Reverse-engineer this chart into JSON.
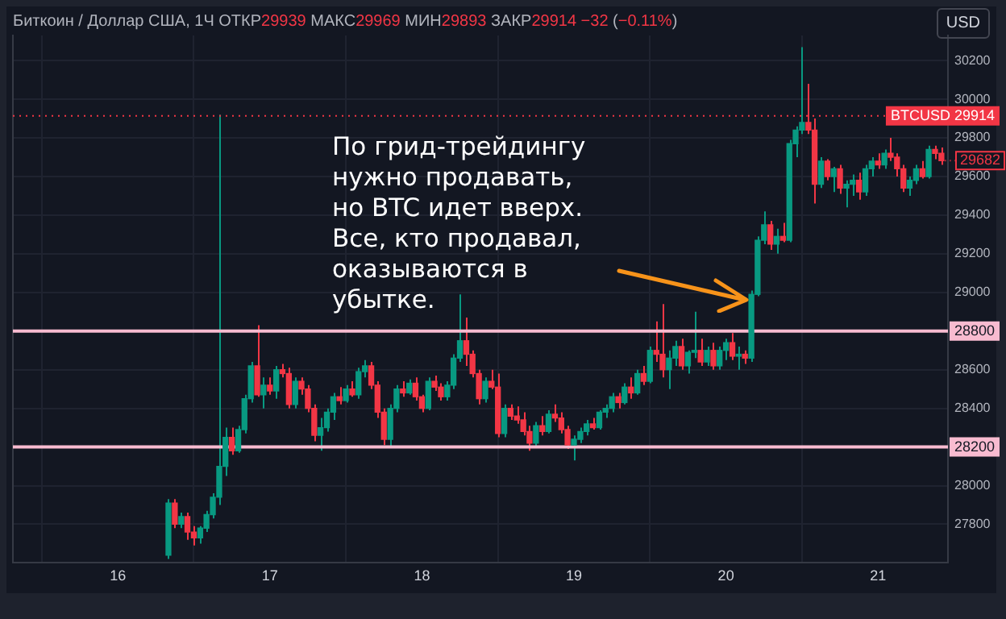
{
  "chart_data": {
    "type": "candlestick",
    "title": "Биткоин / Доллар США, 1Ч",
    "subtitle": "ОТКР29939 МАКС29969 МИН29893 ЗАКР29914 −32 (−0.11%)",
    "x": [
      16.333,
      16.375,
      16.417,
      16.458,
      16.5,
      16.542,
      16.583,
      16.625,
      16.667,
      16.708,
      16.75,
      16.792,
      16.833,
      16.875,
      16.917,
      16.958,
      17,
      17.042,
      17.083,
      17.125,
      17.167,
      17.208,
      17.25,
      17.292,
      17.333,
      17.375,
      17.417,
      17.458,
      17.5,
      17.542,
      17.583,
      17.625,
      17.667,
      17.708,
      17.75,
      17.792,
      17.833,
      17.875,
      17.917,
      17.958,
      18,
      18.042,
      18.083,
      18.125,
      18.167,
      18.208,
      18.25,
      18.292,
      18.333,
      18.375,
      18.417,
      18.458,
      18.5,
      18.542,
      18.583,
      18.625,
      18.667,
      18.708,
      18.75,
      18.792,
      18.833,
      18.875,
      18.917,
      18.958,
      19,
      19.042,
      19.083,
      19.125,
      19.167,
      19.208,
      19.25,
      19.292,
      19.333,
      19.375,
      19.417,
      19.458,
      19.5,
      19.542,
      19.583,
      19.625,
      19.667,
      19.708,
      19.75,
      19.792,
      19.833,
      19.875,
      19.917,
      19.958,
      20,
      20.042,
      20.083,
      20.125,
      20.167,
      20.208,
      20.25,
      20.292,
      20.333,
      20.375,
      20.417,
      20.458,
      20.5,
      20.542,
      20.583,
      20.625,
      20.667,
      20.708,
      20.75,
      20.792,
      20.833,
      20.875,
      20.917,
      20.958,
      21,
      21.042,
      21.083,
      21.125,
      21.167,
      21.208,
      21.25,
      21.292,
      21.333,
      21.375,
      21.417
    ],
    "ohlc": [
      [
        27640,
        27930,
        27620,
        27910
      ],
      [
        27910,
        27930,
        27780,
        27800
      ],
      [
        27800,
        27860,
        27780,
        27840
      ],
      [
        27840,
        27860,
        27720,
        27760
      ],
      [
        27760,
        27790,
        27690,
        27730
      ],
      [
        27730,
        27790,
        27700,
        27780
      ],
      [
        27780,
        27870,
        27760,
        27850
      ],
      [
        27850,
        27960,
        27830,
        27940
      ],
      [
        27940,
        29920,
        27900,
        28100
      ],
      [
        28100,
        28300,
        28050,
        28250
      ],
      [
        28250,
        28300,
        28160,
        28180
      ],
      [
        28180,
        28310,
        28170,
        28290
      ],
      [
        28290,
        28470,
        28270,
        28450
      ],
      [
        28450,
        28640,
        28430,
        28620
      ],
      [
        28620,
        28830,
        28460,
        28470
      ],
      [
        28470,
        28560,
        28400,
        28520
      ],
      [
        28520,
        28560,
        28470,
        28490
      ],
      [
        28490,
        28620,
        28450,
        28600
      ],
      [
        28600,
        28630,
        28560,
        28580
      ],
      [
        28580,
        28610,
        28400,
        28420
      ],
      [
        28420,
        28560,
        28400,
        28540
      ],
      [
        28540,
        28560,
        28470,
        28500
      ],
      [
        28500,
        28520,
        28380,
        28400
      ],
      [
        28400,
        28420,
        28230,
        28260
      ],
      [
        28260,
        28350,
        28180,
        28300
      ],
      [
        28300,
        28400,
        28280,
        28380
      ],
      [
        28380,
        28480,
        28340,
        28460
      ],
      [
        28460,
        28510,
        28420,
        28440
      ],
      [
        28440,
        28520,
        28430,
        28500
      ],
      [
        28500,
        28540,
        28460,
        28470
      ],
      [
        28470,
        28610,
        28450,
        28590
      ],
      [
        28590,
        28650,
        28560,
        28620
      ],
      [
        28620,
        28640,
        28500,
        28520
      ],
      [
        28520,
        28540,
        28350,
        28380
      ],
      [
        28380,
        28400,
        28210,
        28240
      ],
      [
        28240,
        28420,
        28200,
        28400
      ],
      [
        28400,
        28520,
        28380,
        28500
      ],
      [
        28500,
        28540,
        28460,
        28480
      ],
      [
        28480,
        28550,
        28470,
        28530
      ],
      [
        28530,
        28560,
        28440,
        28460
      ],
      [
        28460,
        28470,
        28380,
        28400
      ],
      [
        28400,
        28560,
        28390,
        28540
      ],
      [
        28540,
        28570,
        28490,
        28510
      ],
      [
        28510,
        28530,
        28440,
        28460
      ],
      [
        28460,
        28540,
        28440,
        28520
      ],
      [
        28520,
        28680,
        28500,
        28660
      ],
      [
        28660,
        28990,
        28640,
        28750
      ],
      [
        28750,
        28870,
        28620,
        28680
      ],
      [
        28680,
        28700,
        28560,
        28580
      ],
      [
        28580,
        28600,
        28420,
        28450
      ],
      [
        28450,
        28560,
        28430,
        28540
      ],
      [
        28540,
        28600,
        28500,
        28510
      ],
      [
        28510,
        28580,
        28250,
        28270
      ],
      [
        28270,
        28420,
        28250,
        28400
      ],
      [
        28400,
        28420,
        28340,
        28360
      ],
      [
        28360,
        28410,
        28320,
        28340
      ],
      [
        28340,
        28380,
        28260,
        28280
      ],
      [
        28280,
        28310,
        28180,
        28220
      ],
      [
        28220,
        28330,
        28200,
        28310
      ],
      [
        28310,
        28360,
        28260,
        28280
      ],
      [
        28280,
        28390,
        28270,
        28370
      ],
      [
        28370,
        28420,
        28330,
        28350
      ],
      [
        28350,
        28380,
        28270,
        28290
      ],
      [
        28290,
        28310,
        28190,
        28210
      ],
      [
        28210,
        28260,
        28130,
        28240
      ],
      [
        28240,
        28300,
        28220,
        28280
      ],
      [
        28280,
        28340,
        28260,
        28320
      ],
      [
        28320,
        28350,
        28290,
        28300
      ],
      [
        28300,
        28390,
        28290,
        28380
      ],
      [
        28380,
        28420,
        28350,
        28400
      ],
      [
        28400,
        28480,
        28380,
        28460
      ],
      [
        28460,
        28480,
        28400,
        28430
      ],
      [
        28430,
        28530,
        28420,
        28510
      ],
      [
        28510,
        28560,
        28450,
        28480
      ],
      [
        28480,
        28600,
        28470,
        28580
      ],
      [
        28580,
        28620,
        28520,
        28540
      ],
      [
        28540,
        28720,
        28530,
        28700
      ],
      [
        28700,
        28850,
        28640,
        28680
      ],
      [
        28680,
        28940,
        28560,
        28600
      ],
      [
        28600,
        28700,
        28500,
        28660
      ],
      [
        28660,
        28750,
        28620,
        28720
      ],
      [
        28720,
        28760,
        28600,
        28620
      ],
      [
        28620,
        28700,
        28580,
        28690
      ],
      [
        28690,
        28900,
        28660,
        28700
      ],
      [
        28700,
        28760,
        28620,
        28640
      ],
      [
        28640,
        28720,
        28620,
        28700
      ],
      [
        28700,
        28740,
        28600,
        28620
      ],
      [
        28620,
        28720,
        28600,
        28700
      ],
      [
        28700,
        28760,
        28650,
        28740
      ],
      [
        28740,
        28790,
        28650,
        28670
      ],
      [
        28670,
        28720,
        28600,
        28680
      ],
      [
        28680,
        28700,
        28630,
        28660
      ],
      [
        28660,
        29010,
        28640,
        28990
      ],
      [
        28990,
        29290,
        28980,
        29270
      ],
      [
        29270,
        29420,
        29250,
        29350
      ],
      [
        29350,
        29370,
        29220,
        29250
      ],
      [
        29250,
        29330,
        29200,
        29290
      ],
      [
        29290,
        29360,
        29260,
        29270
      ],
      [
        29270,
        29790,
        29260,
        29770
      ],
      [
        29770,
        29860,
        29700,
        29840
      ],
      [
        29840,
        30270,
        29820,
        29880
      ],
      [
        29880,
        30080,
        29820,
        29840
      ],
      [
        29840,
        29900,
        29460,
        29560
      ],
      [
        29560,
        29700,
        29540,
        29680
      ],
      [
        29680,
        29690,
        29580,
        29600
      ],
      [
        29600,
        29650,
        29520,
        29640
      ],
      [
        29640,
        29660,
        29510,
        29540
      ],
      [
        29540,
        29580,
        29440,
        29560
      ],
      [
        29560,
        29610,
        29500,
        29580
      ],
      [
        29580,
        29620,
        29480,
        29520
      ],
      [
        29520,
        29660,
        29500,
        29640
      ],
      [
        29640,
        29700,
        29600,
        29680
      ],
      [
        29680,
        29720,
        29640,
        29660
      ],
      [
        29660,
        29740,
        29640,
        29720
      ],
      [
        29720,
        29800,
        29680,
        29700
      ],
      [
        29700,
        29720,
        29600,
        29640
      ],
      [
        29640,
        29660,
        29520,
        29540
      ],
      [
        29540,
        29600,
        29500,
        29580
      ],
      [
        29580,
        29660,
        29560,
        29640
      ],
      [
        29640,
        29680,
        29590,
        29600
      ],
      [
        29600,
        29760,
        29590,
        29740
      ],
      [
        29740,
        29760,
        29690,
        29720
      ],
      [
        29720,
        29750,
        29660,
        29682
      ]
    ],
    "colors": [
      "#089981",
      "#f23645",
      "#089981",
      "#f23645",
      "#f23645",
      "#089981",
      "#089981",
      "#089981",
      "#089981",
      "#089981",
      "#f23645",
      "#089981",
      "#089981",
      "#089981",
      "#f23645",
      "#089981",
      "#f23645",
      "#089981",
      "#f23645",
      "#f23645",
      "#089981",
      "#f23645",
      "#f23645",
      "#f23645",
      "#089981",
      "#089981",
      "#089981",
      "#f23645",
      "#089981",
      "#f23645",
      "#089981",
      "#089981",
      "#f23645",
      "#f23645",
      "#f23645",
      "#089981",
      "#089981",
      "#f23645",
      "#089981",
      "#f23645",
      "#f23645",
      "#089981",
      "#f23645",
      "#f23645",
      "#089981",
      "#089981",
      "#089981",
      "#f23645",
      "#f23645",
      "#f23645",
      "#089981",
      "#f23645",
      "#f23645",
      "#089981",
      "#f23645",
      "#f23645",
      "#f23645",
      "#f23645",
      "#089981",
      "#f23645",
      "#089981",
      "#f23645",
      "#f23645",
      "#f23645",
      "#089981",
      "#089981",
      "#089981",
      "#f23645",
      "#089981",
      "#089981",
      "#089981",
      "#f23645",
      "#089981",
      "#f23645",
      "#089981",
      "#f23645",
      "#089981",
      "#f23645",
      "#f23645",
      "#089981",
      "#089981",
      "#f23645",
      "#089981",
      "#089981",
      "#f23645",
      "#089981",
      "#f23645",
      "#089981",
      "#089981",
      "#f23645",
      "#089981",
      "#f23645",
      "#089981",
      "#089981",
      "#089981",
      "#f23645",
      "#089981",
      "#f23645",
      "#089981",
      "#089981",
      "#089981",
      "#f23645",
      "#f23645",
      "#089981",
      "#f23645",
      "#089981",
      "#f23645",
      "#089981",
      "#089981",
      "#f23645",
      "#089981",
      "#089981",
      "#f23645",
      "#089981",
      "#f23645",
      "#f23645",
      "#f23645",
      "#089981",
      "#089981",
      "#f23645",
      "#089981",
      "#f23645",
      "#f23645"
    ],
    "xlim": [
      15.31,
      21.46
    ],
    "xticks": [
      16,
      17,
      18,
      19,
      20,
      21
    ],
    "ylim": [
      27600,
      30330
    ],
    "yticks": [
      27800,
      28000,
      28400,
      28600,
      29000,
      29200,
      29400,
      29600,
      29800,
      30000,
      30200
    ],
    "grid": true,
    "legend": false,
    "ref_lines": [
      {
        "axis": "y",
        "value": 28800,
        "label": "28800",
        "color": "#f8bbd0",
        "line_style": "solid"
      },
      {
        "axis": "y",
        "value": 28200,
        "label": "28200",
        "color": "#f8bbd0",
        "line_style": "solid"
      },
      {
        "axis": "y",
        "value": 29914,
        "label": "BTCUSD 29914",
        "color": "#f23645",
        "line_style": "dotted"
      }
    ],
    "annotations": [
      "По грид-трейдингу\nнужно продавать,\nно BTC идет вверх.\nВсе, кто продавал,\nоказываются в\nубытке.",
      "USD",
      {
        "text": "29682",
        "x": 21.417,
        "y": 29682
      }
    ]
  }
}
